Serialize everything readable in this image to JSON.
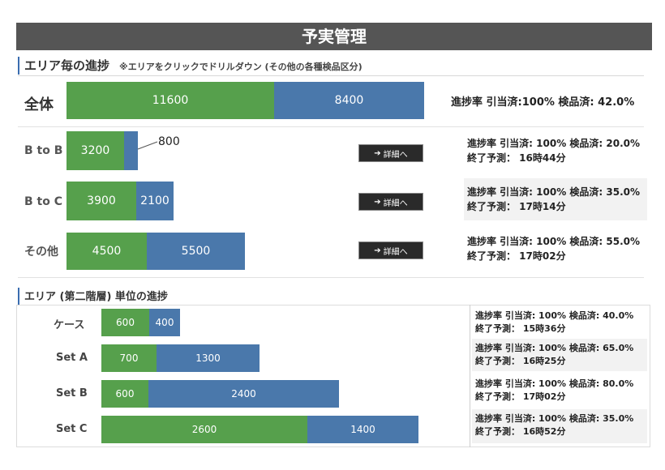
{
  "header": {
    "title": "予実管理"
  },
  "section1": {
    "title": "エリア毎の進捗",
    "note": "※エリアをクリックでドリルダウン (その他の各種検品区分)"
  },
  "section2": {
    "title": "エリア (第二階層) 単位の進捗"
  },
  "total_row": {
    "label": "全体",
    "green": "11600",
    "blue": "8400",
    "progress": "進捗率 引当済:100% 検品済: 42.0%"
  },
  "areas": [
    {
      "label": "B to B",
      "green": "3200",
      "blue": "800",
      "button": "詳細へ",
      "line1": "進捗率 引当済: 100%  検品済: 20.0%",
      "line2": "終了予測： 16時44分"
    },
    {
      "label": "B to C",
      "green": "3900",
      "blue": "2100",
      "button": "詳細へ",
      "line1": "進捗率 引当済: 100%  検品済: 35.0%",
      "line2": "終了予測： 17時14分"
    },
    {
      "label": "その他",
      "green": "4500",
      "blue": "5500",
      "button": "詳細へ",
      "line1": "進捗率 引当済: 100%  検品済: 55.0%",
      "line2": "終了予測： 17時02分"
    }
  ],
  "sub_areas": [
    {
      "label": "ケース",
      "green": "600",
      "blue": "400",
      "line1": "進捗率 引当済: 100%  検品済: 40.0%",
      "line2": "終了予測： 15時36分"
    },
    {
      "label": "Set A",
      "green": "700",
      "blue": "1300",
      "line1": "進捗率 引当済: 100%  検品済: 65.0%",
      "line2": "終了予測： 16時25分"
    },
    {
      "label": "Set B",
      "green": "600",
      "blue": "2400",
      "line1": "進捗率 引当済: 100%  検品済: 80.0%",
      "line2": "終了予測： 17時02分"
    },
    {
      "label": "Set C",
      "green": "2600",
      "blue": "1400",
      "line1": "進捗率 引当済: 100%  検品済: 35.0%",
      "line2": "終了予測： 16時52分"
    }
  ],
  "colors": {
    "done": "#56a04c",
    "remaining": "#4a78ab",
    "title_bg": "#555555",
    "accent": "#3a6db0"
  },
  "icons": {
    "button_arrow": "arrow-right-icon"
  }
}
